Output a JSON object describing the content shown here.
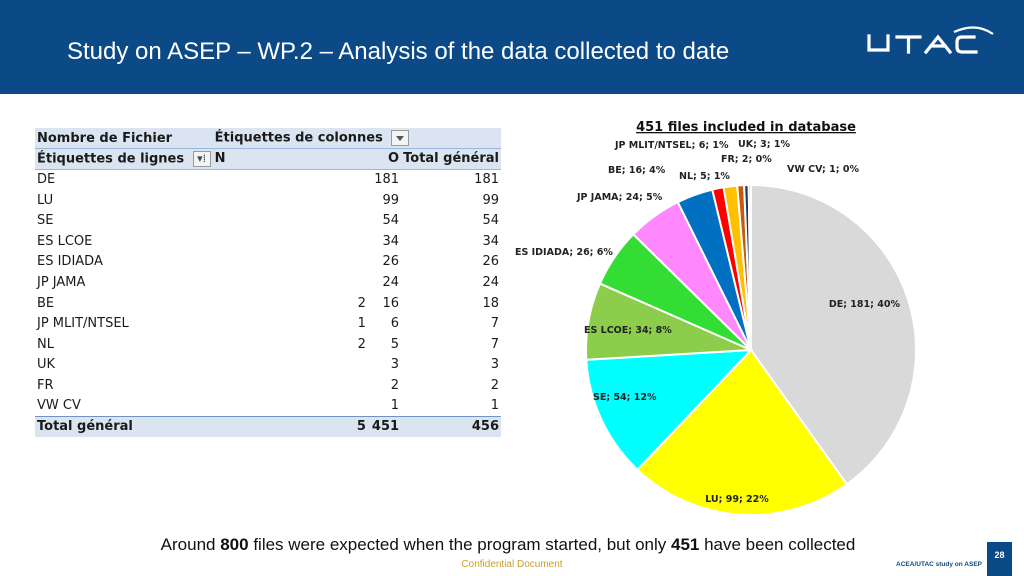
{
  "header": {
    "title": "Study on ASEP – WP.2 – Analysis of the data collected to date",
    "logo_text": "UTAC",
    "bg_color": "#0b4a86"
  },
  "pivot_table": {
    "corner_label": "Nombre de Fichier",
    "columns_label": "Étiquettes de colonnes",
    "rows_label": "Étiquettes de lignes",
    "col_headers": [
      "N",
      "O",
      "Total général"
    ],
    "rows": [
      {
        "label": "DE",
        "n": "",
        "o": "181",
        "total": "181"
      },
      {
        "label": "LU",
        "n": "",
        "o": "99",
        "total": "99"
      },
      {
        "label": "SE",
        "n": "",
        "o": "54",
        "total": "54"
      },
      {
        "label": "ES LCOE",
        "n": "",
        "o": "34",
        "total": "34"
      },
      {
        "label": "ES IDIADA",
        "n": "",
        "o": "26",
        "total": "26"
      },
      {
        "label": "JP JAMA",
        "n": "",
        "o": "24",
        "total": "24"
      },
      {
        "label": "BE",
        "n": "2",
        "o": "16",
        "total": "18"
      },
      {
        "label": "JP MLIT/NTSEL",
        "n": "1",
        "o": "6",
        "total": "7"
      },
      {
        "label": "NL",
        "n": "2",
        "o": "5",
        "total": "7"
      },
      {
        "label": "UK",
        "n": "",
        "o": "3",
        "total": "3"
      },
      {
        "label": "FR",
        "n": "",
        "o": "2",
        "total": "2"
      },
      {
        "label": "VW CV",
        "n": "",
        "o": "1",
        "total": "1"
      }
    ],
    "total_row": {
      "label": "Total général",
      "n": "5",
      "o": "451",
      "total": "456"
    }
  },
  "chart_data": {
    "type": "pie",
    "title": "451 files included in database",
    "slices": [
      {
        "label": "DE",
        "value": 181,
        "percent": "40%",
        "text": "DE; 181; 40%",
        "color": "#d9d9d9"
      },
      {
        "label": "LU",
        "value": 99,
        "percent": "22%",
        "text": "LU; 99; 22%",
        "color": "#ffff00"
      },
      {
        "label": "SE",
        "value": 54,
        "percent": "12%",
        "text": "SE; 54; 12%",
        "color": "#00ffff"
      },
      {
        "label": "ES LCOE",
        "value": 34,
        "percent": "8%",
        "text": "ES LCOE; 34; 8%",
        "color": "#8dcd4c"
      },
      {
        "label": "ES IDIADA",
        "value": 26,
        "percent": "6%",
        "text": "ES IDIADA; 26; 6%",
        "color": "#33dd33"
      },
      {
        "label": "JP JAMA",
        "value": 24,
        "percent": "5%",
        "text": "JP JAMA; 24; 5%",
        "color": "#ff88ff"
      },
      {
        "label": "BE",
        "value": 16,
        "percent": "4%",
        "text": "BE; 16; 4%",
        "color": "#0070c0"
      },
      {
        "label": "NL",
        "value": 5,
        "percent": "1%",
        "text": "NL; 5; 1%",
        "color": "#ff0000"
      },
      {
        "label": "JP MLIT/NTSEL",
        "value": 6,
        "percent": "1%",
        "text": "JP MLIT/NTSEL; 6; 1%",
        "color": "#ffc000"
      },
      {
        "label": "UK",
        "value": 3,
        "percent": "1%",
        "text": "UK; 3; 1%",
        "color": "#c55a11"
      },
      {
        "label": "FR",
        "value": 2,
        "percent": "0%",
        "text": "FR; 2; 0%",
        "color": "#1f3864"
      },
      {
        "label": "VW CV",
        "value": 1,
        "percent": "0%",
        "text": "VW CV; 1; 0%",
        "color": "#5b9bd5"
      }
    ]
  },
  "caption": {
    "prefix": "Around ",
    "bold1": "800",
    "middle": " files were expected when the program started, but only ",
    "bold2": "451",
    "suffix": " have been collected"
  },
  "footer": {
    "confidential": "Confidential Document",
    "page_number": "28",
    "study": "ACEA/UTAC study on ASEP"
  }
}
